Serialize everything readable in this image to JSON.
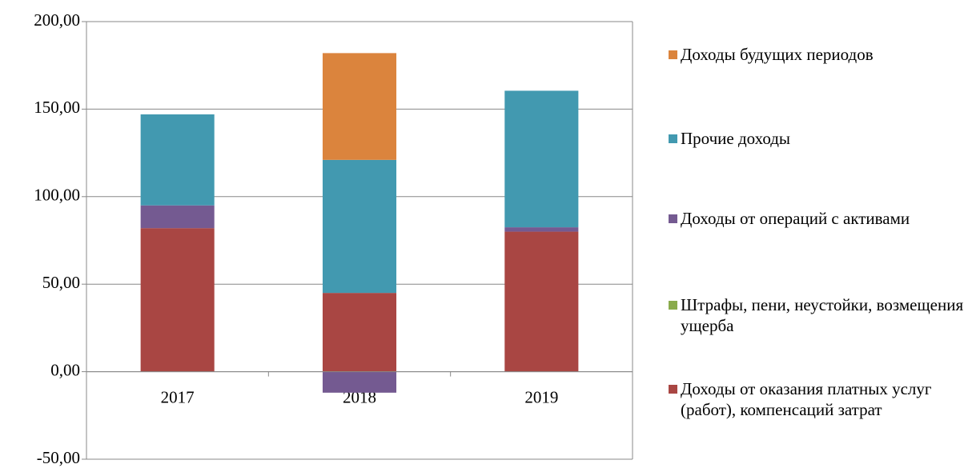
{
  "chart_data": {
    "type": "stacked_bar",
    "categories": [
      "2017",
      "2018",
      "2019"
    ],
    "series": [
      {
        "name": "Доходы от оказания платных услуг (работ), компенсаций затрат",
        "color": "#a94643",
        "values": [
          82,
          45,
          80
        ]
      },
      {
        "name": "Штрафы, пени, неустойки, возмещения ущерба",
        "color": "#8aab4c",
        "values": [
          0,
          0,
          0
        ]
      },
      {
        "name": "Доходы от операций с активами",
        "color": "#745a91",
        "values": [
          13,
          -12,
          2.5
        ]
      },
      {
        "name": "Прочие доходы",
        "color": "#4299b0",
        "values": [
          52,
          76,
          78
        ]
      },
      {
        "name": "Доходы будущих периодов",
        "color": "#db843d",
        "values": [
          0,
          61,
          0
        ]
      }
    ],
    "ylim": [
      -50,
      200
    ],
    "yticks": [
      {
        "value": -50,
        "label": "-50,00"
      },
      {
        "value": 0,
        "label": "0,00"
      },
      {
        "value": 50,
        "label": "50,00"
      },
      {
        "value": 100,
        "label": "100,00"
      },
      {
        "value": 150,
        "label": "150,00"
      },
      {
        "value": 200,
        "label": "200,00"
      }
    ],
    "grid": true,
    "legend": "right"
  }
}
